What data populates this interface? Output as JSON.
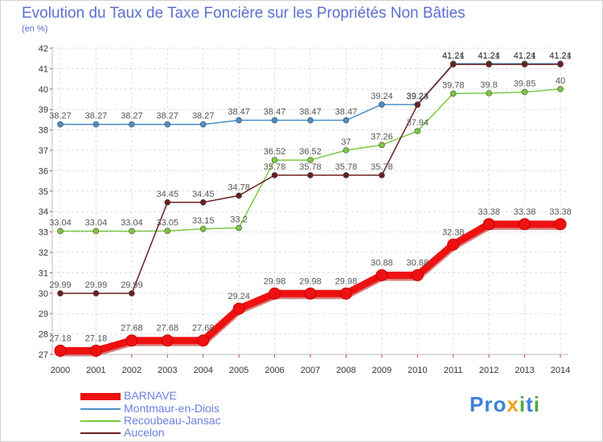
{
  "header": {
    "title": "Evolution du Taux de Taxe Foncière sur les Propriétés Non Bâties",
    "unit": "(en %)"
  },
  "chart_data": {
    "type": "line",
    "title": "Evolution du Taux de Taxe Foncière sur les Propriétés Non Bâties",
    "ylabel": "(en %)",
    "xlabel": "",
    "ylim": [
      27,
      42
    ],
    "yticks": [
      "27",
      "28",
      "29",
      "30",
      "31",
      "32",
      "33",
      "34",
      "35",
      "36",
      "37",
      "38",
      "39",
      "40",
      "41",
      "42"
    ],
    "categories": [
      "2000",
      "2001",
      "2002",
      "2003",
      "2004",
      "2005",
      "2006",
      "2007",
      "2008",
      "2009",
      "2010",
      "2011",
      "2012",
      "2013",
      "2014"
    ],
    "grid": true,
    "series": [
      {
        "name": "Montmaur-en-Diois",
        "color": "#4a90c8",
        "values": [
          38.27,
          38.27,
          38.27,
          38.27,
          38.27,
          38.47,
          38.47,
          38.47,
          38.47,
          39.24,
          39.24,
          41.24,
          41.24,
          41.24,
          41.24
        ],
        "labels": [
          "38.27",
          "38.27",
          "38.27",
          "38.27",
          "38.27",
          "38.47",
          "38.47",
          "38.47",
          "38.47",
          "39.24",
          "39.24",
          "41.24",
          "41.24",
          "41.24",
          "41.24"
        ]
      },
      {
        "name": "Recoubeau-Jansac",
        "color": "#7cc842",
        "values": [
          33.04,
          33.04,
          33.04,
          33.05,
          33.15,
          33.2,
          36.52,
          36.52,
          37,
          37.26,
          37.94,
          39.78,
          39.8,
          39.85,
          40
        ],
        "labels": [
          "33.04",
          "33.04",
          "33.04",
          "33.05",
          "33.15",
          "33.2",
          "36.52",
          "36.52",
          "37",
          "37.26",
          "37.94",
          "39.78",
          "39.8",
          "39.85",
          "40"
        ]
      },
      {
        "name": "Aucelon",
        "color": "#6b2020",
        "values": [
          29.99,
          29.99,
          29.99,
          34.45,
          34.45,
          34.78,
          35.78,
          35.78,
          35.78,
          35.78,
          39.23,
          41.21,
          41.21,
          41.21,
          41.21
        ],
        "labels": [
          "29.99",
          "29.99",
          "29.99",
          "34.45",
          "34.45",
          "34.78",
          "35.78",
          "35.78",
          "35.78",
          "35.78",
          "39.23",
          "41.21",
          "41.21",
          "41.21",
          "41.21"
        ]
      },
      {
        "name": "BARNAVE",
        "color": "#ee1111",
        "values": [
          27.18,
          27.18,
          27.68,
          27.68,
          27.68,
          29.24,
          29.98,
          29.98,
          29.98,
          30.88,
          30.88,
          32.38,
          33.38,
          33.38,
          33.38
        ],
        "labels": [
          "27.18",
          "27.18",
          "27.68",
          "27.68",
          "27.68",
          "29.24",
          "29.98",
          "29.98",
          "29.98",
          "30.88",
          "30.88",
          "32.38",
          "33.38",
          "33.38",
          "33.38"
        ]
      }
    ],
    "legend": {
      "position": "bottom-left",
      "entries": [
        "BARNAVE",
        "Montmaur-en-Diois",
        "Recoubeau-Jansac",
        "Aucelon"
      ]
    }
  },
  "branding": {
    "logo_letters": [
      "P",
      "r",
      "o",
      "x",
      "i",
      "t",
      "i"
    ],
    "logo_colors": [
      "#3b82d6",
      "#3b82d6",
      "#3b82d6",
      "#f0a020",
      "#4caa3a",
      "#3b82d6",
      "#4caa3a"
    ]
  }
}
